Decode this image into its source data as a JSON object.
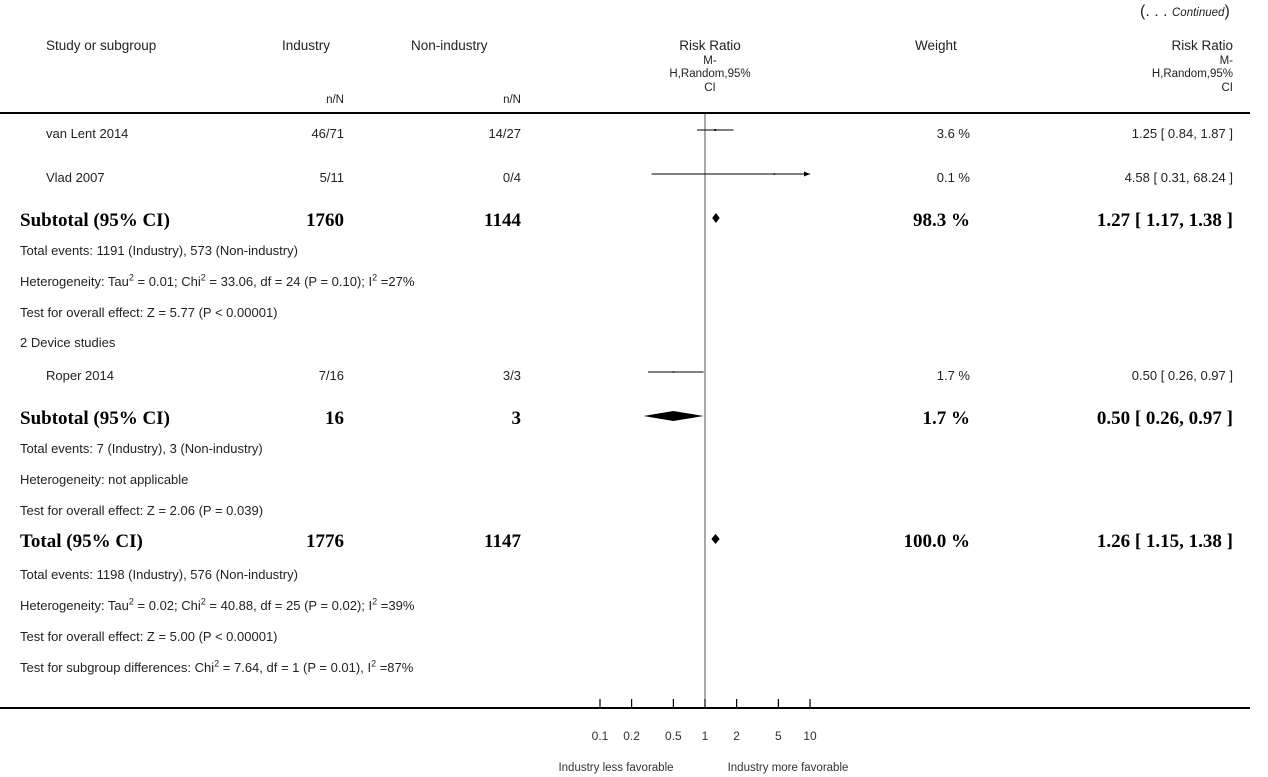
{
  "continued": {
    "open": "(. . . ",
    "text": "Continued",
    "close": ")"
  },
  "header": {
    "study": "Study or subgroup",
    "industry": "Industry",
    "nonindustry": "Non-industry",
    "rr_plot": [
      "Risk Ratio",
      "M-",
      "H,Random,95%",
      "CI"
    ],
    "weight": "Weight",
    "rr_text": [
      "Risk Ratio",
      "M-",
      "H,Random,95%",
      "CI"
    ],
    "nN1": "n/N",
    "nN2": "n/N"
  },
  "rows": [
    {
      "type": "study",
      "label": "van Lent 2014",
      "industry": "46/71",
      "nonindustry": "14/27",
      "weight": "3.6 %",
      "ci": "1.25 [ 0.84, 1.87 ]"
    },
    {
      "type": "study",
      "label": "Vlad 2007",
      "industry": "5/11",
      "nonindustry": "0/4",
      "weight": "0.1 %",
      "ci": "4.58 [ 0.31, 68.24 ]"
    },
    {
      "type": "subtotal",
      "label": "Subtotal (95% CI)",
      "industry": "1760",
      "nonindustry": "1144",
      "weight": "98.3 %",
      "ci": "1.27 [ 1.17, 1.38 ]"
    },
    {
      "type": "note",
      "html": "Total events: 1191 (Industry), 573 (Non-industry)"
    },
    {
      "type": "note",
      "html": "Heterogeneity: Tau<sup>2</sup> = 0.01; Chi<sup>2</sup> = 33.06, df = 24 (P = 0.10); I<sup>2</sup> =27%"
    },
    {
      "type": "note",
      "html": "Test for overall effect: Z = 5.77 (P &lt; 0.00001)"
    },
    {
      "type": "note",
      "html": "2 Device studies"
    },
    {
      "type": "study",
      "label": "Roper 2014",
      "industry": "7/16",
      "nonindustry": "3/3",
      "weight": "1.7 %",
      "ci": "0.50 [ 0.26, 0.97 ]"
    },
    {
      "type": "subtotal",
      "label": "Subtotal (95% CI)",
      "industry": "16",
      "nonindustry": "3",
      "weight": "1.7 %",
      "ci": "0.50 [ 0.26, 0.97 ]"
    },
    {
      "type": "note",
      "html": "Total events: 7 (Industry), 3 (Non-industry)"
    },
    {
      "type": "note",
      "html": "Heterogeneity: not applicable"
    },
    {
      "type": "note",
      "html": "Test for overall effect: Z = 2.06 (P = 0.039)"
    },
    {
      "type": "subtotal",
      "label": "Total (95% CI)",
      "industry": "1776",
      "nonindustry": "1147",
      "weight": "100.0 %",
      "ci": "1.26 [ 1.15, 1.38 ]"
    },
    {
      "type": "note",
      "html": "Total events: 1198 (Industry), 576 (Non-industry)"
    },
    {
      "type": "note",
      "html": "Heterogeneity: Tau<sup>2</sup> = 0.02; Chi<sup>2</sup> = 40.88, df = 25 (P = 0.02); I<sup>2</sup> =39%"
    },
    {
      "type": "note",
      "html": "Test for overall effect: Z = 5.00 (P &lt; 0.00001)"
    },
    {
      "type": "note",
      "html": "Test for subgroup differences: Chi<sup>2</sup> = 7.64, df = 1 (P = 0.01), I<sup>2</sup> =87%"
    }
  ],
  "chart_data": {
    "type": "forest",
    "scale": "log",
    "xlim": [
      0.1,
      10
    ],
    "ticks": [
      0.1,
      0.2,
      0.5,
      1,
      2,
      5,
      10
    ],
    "tick_labels": [
      "0.1",
      "0.2",
      "0.5",
      "1",
      "2",
      "5",
      "10"
    ],
    "reference_line": 1,
    "xlabel_left": "Industry less favorable",
    "xlabel_right": "Industry more favorable",
    "studies": [
      {
        "label": "van Lent 2014",
        "rr": 1.25,
        "lo": 0.84,
        "hi": 1.87,
        "weight": 3.6
      },
      {
        "label": "Vlad 2007",
        "rr": 4.58,
        "lo": 0.31,
        "hi": 68.24,
        "weight": 0.1
      },
      {
        "label": "Roper 2014",
        "rr": 0.5,
        "lo": 0.26,
        "hi": 0.97,
        "weight": 1.7
      }
    ],
    "summaries": [
      {
        "label": "Subtotal (95% CI)",
        "rr": 1.27,
        "lo": 1.17,
        "hi": 1.38
      },
      {
        "label": "Subtotal (95% CI)",
        "rr": 0.5,
        "lo": 0.26,
        "hi": 0.97
      },
      {
        "label": "Total (95% CI)",
        "rr": 1.26,
        "lo": 1.15,
        "hi": 1.38
      }
    ]
  }
}
